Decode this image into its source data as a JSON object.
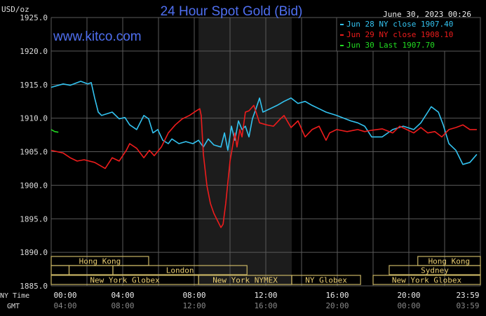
{
  "chart_data": {
    "type": "line",
    "title": "24 Hour Spot Gold (Bid)",
    "watermark": "www.kitco.com",
    "timestamp": "June 30, 2023 00:26",
    "ylabel": "USD/oz",
    "ylim": [
      1885,
      1925
    ],
    "yticks": [
      "1925.0",
      "1920.0",
      "1915.0",
      "1910.0",
      "1905.0",
      "1900.0",
      "1895.0",
      "1890.0",
      "1885.0"
    ],
    "xlim_hours": [
      0,
      24
    ],
    "x_row_labels": {
      "ny": "NY Time",
      "gmt": "GMT"
    },
    "xticks_ny": [
      "00:00",
      "04:00",
      "08:00",
      "12:00",
      "16:00",
      "20:00",
      "23:59"
    ],
    "xticks_gmt": [
      "04:00",
      "08:00",
      "12:00",
      "16:00",
      "20:00",
      "00:00",
      "03:59"
    ],
    "grid": true,
    "shaded_session_hours": [
      8.24,
      13.45
    ],
    "legend_placement": "top-right",
    "colors": {
      "background": "#000000",
      "grid": "#5a5a5a",
      "shade": "#1c1c1c",
      "title": "#4f6ff0",
      "session": "#c8b464",
      "session_text": "#e8cc70"
    },
    "series": [
      {
        "name": "Jun 28 NY close 1907.40",
        "color": "#33c3f0",
        "points": [
          [
            0,
            1914.6
          ],
          [
            0.67,
            1915.1
          ],
          [
            1.06,
            1914.9
          ],
          [
            1.65,
            1915.5
          ],
          [
            2.04,
            1915.1
          ],
          [
            2.24,
            1915.3
          ],
          [
            2.43,
            1913.0
          ],
          [
            2.63,
            1910.9
          ],
          [
            2.82,
            1910.4
          ],
          [
            3.41,
            1910.9
          ],
          [
            3.8,
            1909.9
          ],
          [
            4.12,
            1910.1
          ],
          [
            4.39,
            1909.0
          ],
          [
            4.78,
            1908.3
          ],
          [
            5.18,
            1910.4
          ],
          [
            5.45,
            1909.9
          ],
          [
            5.69,
            1907.8
          ],
          [
            5.96,
            1908.3
          ],
          [
            6.24,
            1906.7
          ],
          [
            6.55,
            1906.2
          ],
          [
            6.75,
            1906.9
          ],
          [
            7.14,
            1906.2
          ],
          [
            7.53,
            1906.5
          ],
          [
            7.92,
            1906.2
          ],
          [
            8.24,
            1906.7
          ],
          [
            8.51,
            1905.7
          ],
          [
            8.78,
            1906.9
          ],
          [
            9.1,
            1906.0
          ],
          [
            9.49,
            1905.7
          ],
          [
            9.69,
            1907.8
          ],
          [
            9.88,
            1905.2
          ],
          [
            10.08,
            1908.8
          ],
          [
            10.27,
            1906.7
          ],
          [
            10.47,
            1909.6
          ],
          [
            10.67,
            1908.3
          ],
          [
            10.86,
            1908.8
          ],
          [
            11.06,
            1907.2
          ],
          [
            11.25,
            1909.9
          ],
          [
            11.45,
            1911.4
          ],
          [
            11.65,
            1913.0
          ],
          [
            11.84,
            1910.9
          ],
          [
            12.24,
            1911.4
          ],
          [
            12.63,
            1911.9
          ],
          [
            13.02,
            1912.5
          ],
          [
            13.41,
            1913.0
          ],
          [
            13.8,
            1912.2
          ],
          [
            14.2,
            1912.5
          ],
          [
            14.59,
            1911.9
          ],
          [
            14.98,
            1911.4
          ],
          [
            15.37,
            1910.9
          ],
          [
            15.96,
            1910.4
          ],
          [
            16.75,
            1909.6
          ],
          [
            17.14,
            1909.3
          ],
          [
            17.53,
            1908.8
          ],
          [
            17.92,
            1907.2
          ],
          [
            18.51,
            1907.2
          ],
          [
            19.1,
            1908.3
          ],
          [
            19.69,
            1908.8
          ],
          [
            20.27,
            1908.3
          ],
          [
            20.67,
            1909.3
          ],
          [
            21.06,
            1910.9
          ],
          [
            21.25,
            1911.7
          ],
          [
            21.65,
            1910.9
          ],
          [
            21.92,
            1909.0
          ],
          [
            22.24,
            1906.2
          ],
          [
            22.63,
            1905.2
          ],
          [
            23.02,
            1903.1
          ],
          [
            23.41,
            1903.4
          ],
          [
            23.8,
            1904.6
          ]
        ]
      },
      {
        "name": "Jun 29 NY close 1908.10",
        "color": "#ee1c1c",
        "points": [
          [
            0,
            1905.2
          ],
          [
            0.67,
            1904.8
          ],
          [
            1.06,
            1904.1
          ],
          [
            1.45,
            1903.6
          ],
          [
            1.84,
            1903.8
          ],
          [
            2.43,
            1903.4
          ],
          [
            3.02,
            1902.5
          ],
          [
            3.41,
            1904.1
          ],
          [
            3.8,
            1903.6
          ],
          [
            4.2,
            1905.2
          ],
          [
            4.39,
            1906.2
          ],
          [
            4.78,
            1905.5
          ],
          [
            5.18,
            1904.1
          ],
          [
            5.49,
            1905.2
          ],
          [
            5.76,
            1904.4
          ],
          [
            6.16,
            1905.7
          ],
          [
            6.55,
            1907.8
          ],
          [
            6.94,
            1909.0
          ],
          [
            7.33,
            1909.9
          ],
          [
            7.73,
            1910.4
          ],
          [
            8.12,
            1911.1
          ],
          [
            8.31,
            1911.4
          ],
          [
            8.39,
            1910.4
          ],
          [
            8.51,
            1904.6
          ],
          [
            8.71,
            1899.9
          ],
          [
            8.9,
            1897.3
          ],
          [
            9.1,
            1895.8
          ],
          [
            9.49,
            1893.7
          ],
          [
            9.61,
            1894.2
          ],
          [
            9.76,
            1897.3
          ],
          [
            10.0,
            1903.6
          ],
          [
            10.27,
            1907.8
          ],
          [
            10.39,
            1905.7
          ],
          [
            10.55,
            1908.3
          ],
          [
            10.67,
            1907.2
          ],
          [
            10.86,
            1910.9
          ],
          [
            11.06,
            1911.1
          ],
          [
            11.33,
            1911.9
          ],
          [
            11.65,
            1909.3
          ],
          [
            12.04,
            1909.0
          ],
          [
            12.43,
            1908.8
          ],
          [
            12.82,
            1909.9
          ],
          [
            13.02,
            1910.4
          ],
          [
            13.41,
            1908.6
          ],
          [
            13.8,
            1909.6
          ],
          [
            14.2,
            1907.2
          ],
          [
            14.59,
            1908.3
          ],
          [
            14.98,
            1908.8
          ],
          [
            15.37,
            1906.7
          ],
          [
            15.57,
            1907.8
          ],
          [
            15.96,
            1908.3
          ],
          [
            16.55,
            1908.0
          ],
          [
            17.14,
            1908.3
          ],
          [
            17.53,
            1908.0
          ],
          [
            17.92,
            1908.2
          ],
          [
            18.51,
            1908.4
          ],
          [
            19.1,
            1907.8
          ],
          [
            19.49,
            1908.8
          ],
          [
            19.88,
            1908.3
          ],
          [
            20.27,
            1907.8
          ],
          [
            20.67,
            1908.6
          ],
          [
            21.06,
            1907.8
          ],
          [
            21.45,
            1908.0
          ],
          [
            21.84,
            1907.2
          ],
          [
            22.24,
            1908.3
          ],
          [
            22.63,
            1908.6
          ],
          [
            23.02,
            1909.0
          ],
          [
            23.41,
            1908.3
          ],
          [
            23.8,
            1908.3
          ]
        ]
      },
      {
        "name": "Jun 30 Last 1907.70",
        "color": "#22dd22",
        "points": [
          [
            0,
            1908.3
          ],
          [
            0.2,
            1908.0
          ],
          [
            0.4,
            1907.9
          ]
        ]
      }
    ],
    "sessions": [
      {
        "label": "Hong Kong",
        "row": 0,
        "start": 0,
        "end": 5.45
      },
      {
        "label": "Hong Kong",
        "row": 0,
        "start": 20.5,
        "end": 24
      },
      {
        "label": "",
        "row": 1,
        "start": 0,
        "end": 1.0
      },
      {
        "label": "",
        "row": 1,
        "start": 1.0,
        "end": 3.45
      },
      {
        "label": "London",
        "row": 1,
        "start": 3.45,
        "end": 10.95
      },
      {
        "label": "Sydney",
        "row": 1,
        "start": 18.9,
        "end": 24
      },
      {
        "label": "New York Globex",
        "row": 2,
        "start": 0,
        "end": 8.24
      },
      {
        "label": "New York NYMEX",
        "row": 2,
        "start": 8.24,
        "end": 13.45
      },
      {
        "label": "NY Globex",
        "row": 2,
        "start": 13.45,
        "end": 17.3
      },
      {
        "label": "New York Globex",
        "row": 2,
        "start": 18.0,
        "end": 24
      }
    ]
  }
}
